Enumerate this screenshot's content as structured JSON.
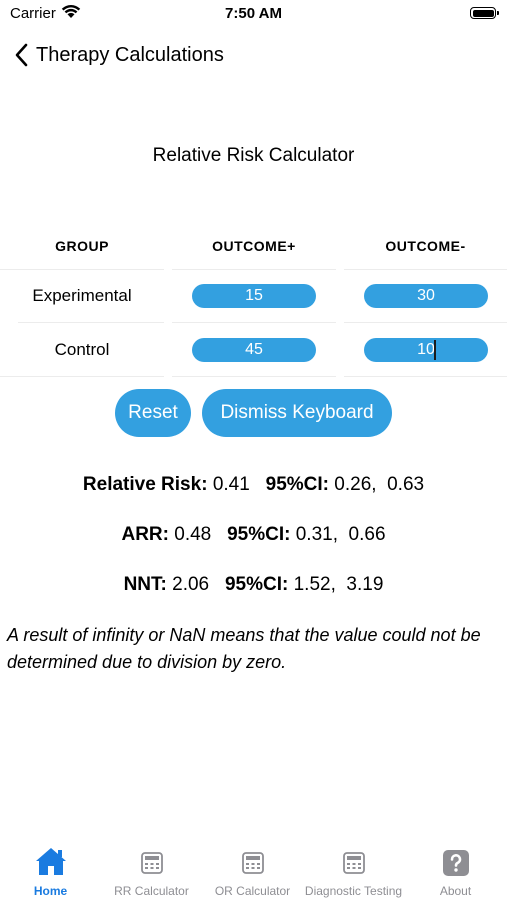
{
  "status": {
    "carrier": "Carrier",
    "time": "7:50 AM"
  },
  "nav": {
    "title": "Therapy Calculations"
  },
  "calculator": {
    "title": "Relative Risk Calculator",
    "headers": {
      "group": "GROUP",
      "outcome_pos": "OUTCOME+",
      "outcome_neg": "OUTCOME-"
    },
    "rows": {
      "experimental": {
        "label": "Experimental",
        "pos": "15",
        "neg": "30"
      },
      "control": {
        "label": "Control",
        "pos": "45",
        "neg": "10"
      }
    }
  },
  "buttons": {
    "reset": "Reset",
    "dismiss": "Dismiss Keyboard"
  },
  "results": {
    "rr_label": "Relative Risk:",
    "rr_value": "0.41",
    "rr_ci_label": "95%CI:",
    "rr_ci_value": "0.26,  0.63",
    "arr_label": "ARR:",
    "arr_value": "0.48",
    "arr_ci_label": "95%CI:",
    "arr_ci_value": "0.31,  0.66",
    "nnt_label": "NNT:",
    "nnt_value": "2.06",
    "nnt_ci_label": "95%CI:",
    "nnt_ci_value": "1.52,  3.19"
  },
  "note": "A result of infinity or NaN means that the value could not be determined due to division by zero.",
  "tabs": {
    "home": "Home",
    "rr": "RR Calculator",
    "or": "OR Calculator",
    "diag": "Diagnostic Testing",
    "about": "About"
  },
  "colors": {
    "accent": "#33a0e0",
    "tab_active": "#1a7be0",
    "tab_inactive": "#8e8e93"
  },
  "icons": {
    "back": "chevron-left-icon",
    "home": "house-icon",
    "rr": "calculator-icon",
    "or": "calculator-icon",
    "diag": "calculator-icon",
    "about": "question-mark-icon"
  }
}
